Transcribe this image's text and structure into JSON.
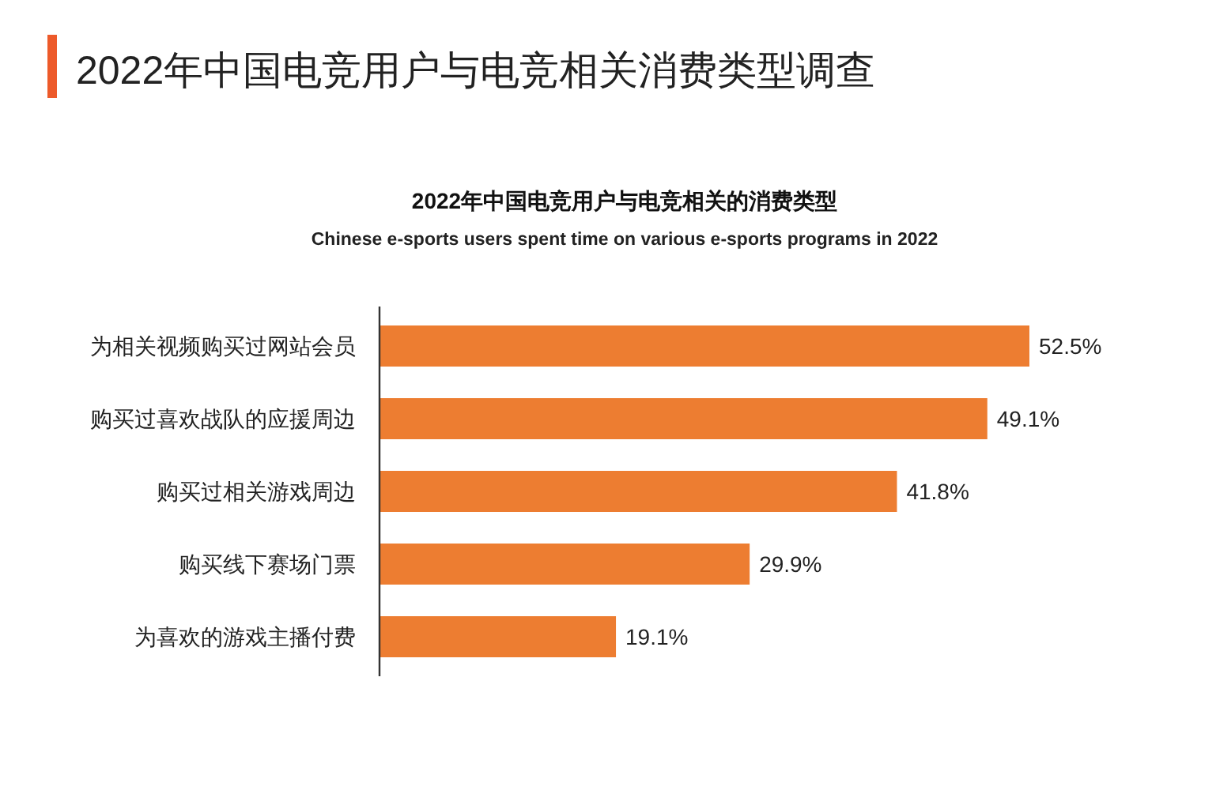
{
  "chart_data": {
    "type": "bar",
    "orientation": "horizontal",
    "title": "2022年中国电竞用户与电竞相关消费类型调查",
    "subtitle": "2022年中国电竞用户与电竞相关的消费类型",
    "annotations": [
      "Chinese e-sports users spent time on various e-sports programs in 2022"
    ],
    "categories": [
      "为相关视频购买过网站会员",
      "购买过喜欢战队的应援周边",
      "购买过相关游戏周边",
      "购买线下赛场门票",
      "为喜欢的游戏主播付费"
    ],
    "series": [
      {
        "color": "#ed7d31",
        "values": [
          52.5,
          49.1,
          41.8,
          29.9,
          19.1
        ],
        "value_labels": [
          "52.5%",
          "49.1%",
          "41.8%",
          "29.9%",
          "19.1%"
        ]
      }
    ]
  }
}
